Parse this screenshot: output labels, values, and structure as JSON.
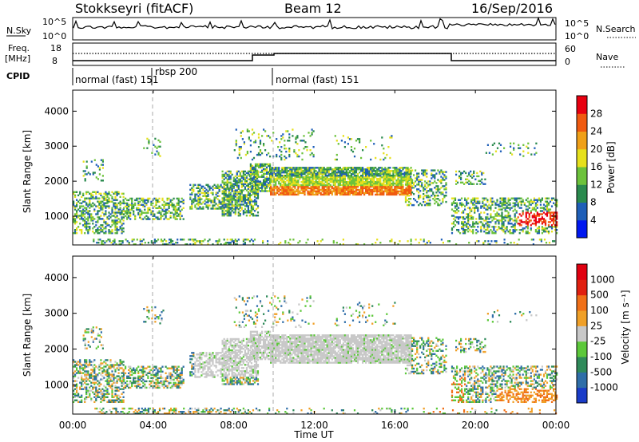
{
  "header": {
    "station": "Stokkseyri (fitACF)",
    "beam": "Beam 12",
    "date": "16/Sep/2016"
  },
  "panels": {
    "nsky": {
      "label": "N.Sky",
      "tick_top": "10^5",
      "tick_bottom": "10^0",
      "right_label": "N.Search",
      "right_tick_top": "10^5",
      "right_tick_bottom": "10^0"
    },
    "freq": {
      "label_line1": "Freq.",
      "label_line2": "[MHz]",
      "tick_top": "18",
      "tick_bottom": "8",
      "right_label": "Nave",
      "right_tick_top": "60",
      "right_tick_bottom": "0"
    },
    "cpid": {
      "label": "CPID",
      "segments": [
        {
          "text": "normal (fast) 151",
          "start_h": 0
        },
        {
          "text": "rbsp 200",
          "start_h": 4
        },
        {
          "text": "normal (fast) 151",
          "start_h": 10
        }
      ]
    }
  },
  "chart_data": [
    {
      "type": "heatmap",
      "name": "Power",
      "ylabel": "Slant Range [km]",
      "xlabel": "Time UT",
      "xlim_hours": [
        0,
        24
      ],
      "ylim": [
        180,
        4600
      ],
      "yticks": [
        "1000",
        "2000",
        "3000",
        "4000"
      ],
      "colorbar": {
        "label": "Power [dB]",
        "ticks": [
          "4",
          "8",
          "12",
          "16",
          "20",
          "24",
          "28"
        ],
        "colors": [
          "#0018f0",
          "#1f5fb8",
          "#2a8a4e",
          "#6cc23b",
          "#e6e01c",
          "#f0a018",
          "#f05a10",
          "#e80010"
        ]
      }
    },
    {
      "type": "heatmap",
      "name": "Velocity",
      "ylabel": "Slant Range [km]",
      "xlabel": "Time UT",
      "xlim_hours": [
        0,
        24
      ],
      "ylim": [
        180,
        4600
      ],
      "yticks": [
        "1000",
        "2000",
        "3000",
        "4000"
      ],
      "colorbar": {
        "label": "Velocity [m s⁻¹]",
        "ticks": [
          "1000",
          "500",
          "100",
          "25",
          "-25",
          "-100",
          "-500",
          "-1000"
        ],
        "colors": [
          "#1a3cc8",
          "#2f6ea8",
          "#2f8a5a",
          "#5cc83a",
          "#c8c8c8",
          "#f0a028",
          "#f07018",
          "#e02010",
          "#e00010"
        ]
      }
    }
  ],
  "xaxis": {
    "label": "Time UT",
    "ticks": [
      "00:00",
      "04:00",
      "08:00",
      "12:00",
      "16:00",
      "20:00",
      "00:00"
    ]
  }
}
